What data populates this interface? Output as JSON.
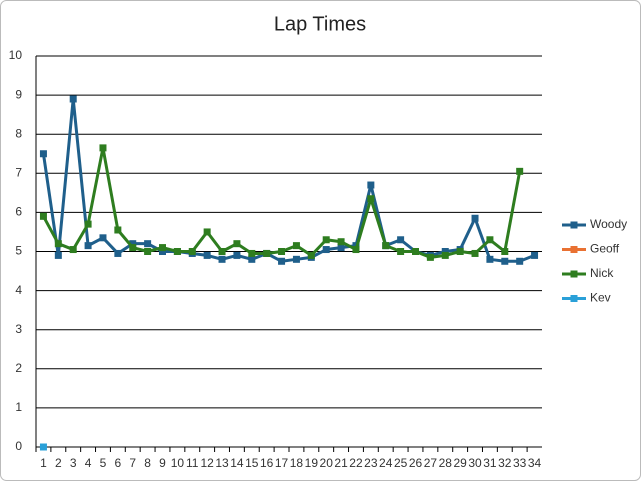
{
  "chart_data": {
    "type": "line",
    "title": "Lap Times",
    "categories": [
      1,
      2,
      3,
      4,
      5,
      6,
      7,
      8,
      9,
      10,
      11,
      12,
      13,
      14,
      15,
      16,
      17,
      18,
      19,
      20,
      21,
      22,
      23,
      24,
      25,
      26,
      27,
      28,
      29,
      30,
      31,
      32,
      33,
      34
    ],
    "series": [
      {
        "name": "Woody",
        "color": "#1f5f8b",
        "values": [
          7.5,
          4.9,
          8.9,
          5.15,
          5.35,
          4.95,
          5.2,
          5.2,
          5.0,
          5.0,
          4.95,
          4.9,
          4.8,
          4.9,
          4.8,
          4.95,
          4.75,
          4.8,
          4.85,
          5.05,
          5.1,
          5.15,
          6.7,
          5.15,
          5.3,
          5.0,
          4.9,
          5.0,
          5.05,
          5.85,
          4.8,
          4.75,
          4.75,
          4.9
        ]
      },
      {
        "name": "Geoff",
        "color": "#e97132",
        "values": [
          null,
          null,
          null,
          null,
          null,
          null,
          null,
          null,
          null,
          null,
          null,
          null,
          null,
          null,
          null,
          null,
          null,
          null,
          null,
          null,
          null,
          null,
          null,
          null,
          null,
          null,
          null,
          null,
          null,
          null,
          null,
          null,
          null,
          null
        ]
      },
      {
        "name": "Nick",
        "color": "#2e7d1f",
        "values": [
          5.9,
          5.2,
          5.05,
          5.7,
          7.65,
          5.55,
          5.1,
          5.0,
          5.1,
          5.0,
          5.0,
          5.5,
          5.0,
          5.2,
          4.95,
          4.95,
          5.0,
          5.15,
          4.9,
          5.3,
          5.25,
          5.05,
          6.35,
          5.15,
          5.0,
          5.0,
          4.85,
          4.9,
          5.0,
          4.95,
          5.3,
          5.0,
          7.05,
          null
        ]
      },
      {
        "name": "Kev",
        "color": "#2aa0d8",
        "values": [
          0,
          null,
          null,
          null,
          null,
          null,
          null,
          null,
          null,
          null,
          null,
          null,
          null,
          null,
          null,
          null,
          null,
          null,
          null,
          null,
          null,
          null,
          null,
          null,
          null,
          null,
          null,
          null,
          null,
          null,
          null,
          null,
          null,
          null
        ]
      }
    ],
    "ylim": [
      0,
      10
    ],
    "yticks": [
      0,
      1,
      2,
      3,
      4,
      5,
      6,
      7,
      8,
      9,
      10
    ],
    "grid": true,
    "legend": "right"
  }
}
